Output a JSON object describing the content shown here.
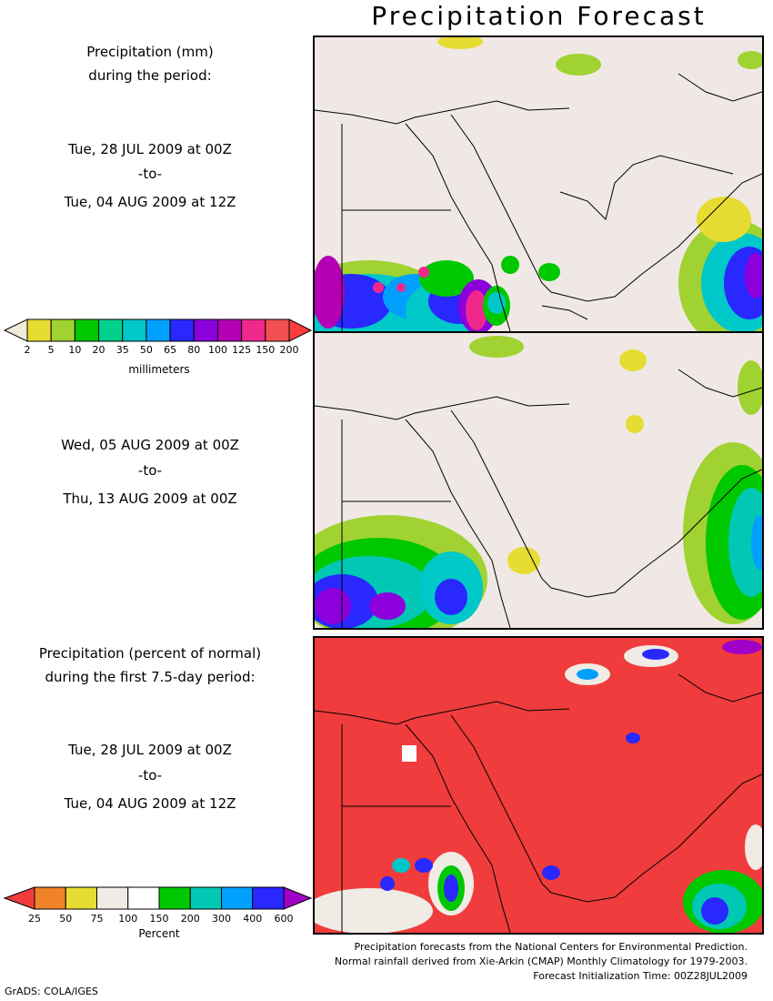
{
  "title": "Precipitation Forecast",
  "panel1": {
    "header": [
      "Precipitation (mm)",
      "during the period:"
    ],
    "start": "Tue, 28 JUL 2009 at 00Z",
    "sep": "-to-",
    "end": "Tue, 04 AUG 2009 at 12Z"
  },
  "panel2": {
    "start": "Wed, 05 AUG 2009 at 00Z",
    "sep": "-to-",
    "end": "Thu, 13 AUG 2009 at 00Z"
  },
  "panel3": {
    "header": [
      "Precipitation (percent of normal)",
      "during the first 7.5-day period:"
    ],
    "start": "Tue, 28 JUL 2009 at 00Z",
    "sep": "-to-",
    "end": "Tue, 04 AUG 2009 at 12Z"
  },
  "mm_legend": {
    "unit": "millimeters",
    "ticks": [
      "2",
      "5",
      "10",
      "20",
      "35",
      "50",
      "65",
      "80",
      "100",
      "125",
      "150",
      "200"
    ],
    "colors": [
      "#f0ecd8",
      "#e6dc32",
      "#a0d232",
      "#00c800",
      "#00d28c",
      "#00c8c8",
      "#00a0ff",
      "#2828ff",
      "#8c00dc",
      "#b400b4",
      "#f0288c",
      "#f05050",
      "#ff3c3c"
    ]
  },
  "pct_legend": {
    "unit": "Percent",
    "ticks": [
      "25",
      "50",
      "75",
      "100",
      "150",
      "200",
      "300",
      "400",
      "600"
    ],
    "colors": [
      "#f03c3c",
      "#f08228",
      "#e6dc32",
      "#f0ebe4",
      "#ffffff",
      "#00c800",
      "#00c8b4",
      "#00a0ff",
      "#2828ff",
      "#a000c8"
    ]
  },
  "footer": [
    "Precipitation forecasts from the National Centers for Environmental Prediction.",
    "Normal rainfall derived from Xie-Arkin (CMAP) Monthly Climatology for 1979-2003.",
    "Forecast Initialization Time: 00Z28JUL2009"
  ],
  "credit": "GrADS: COLA/IGES",
  "colors": {
    "land": "#f0e8e4",
    "above_normal": "#f03c3c"
  }
}
